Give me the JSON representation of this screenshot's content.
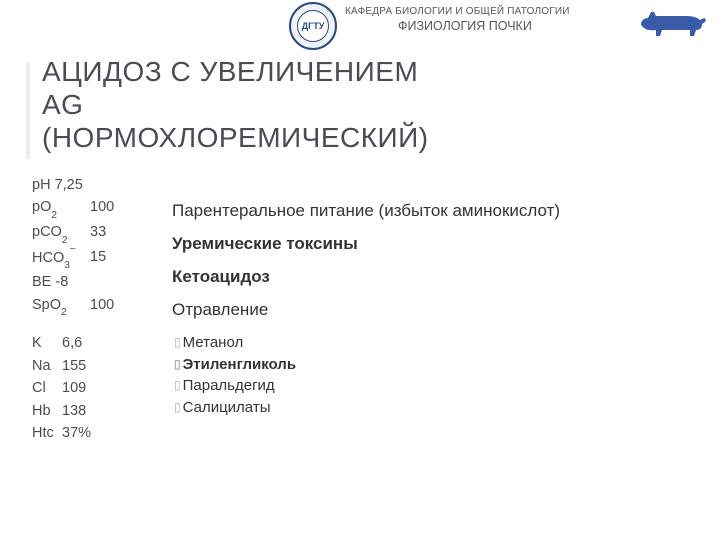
{
  "header": {
    "dept": "КАФЕДРА БИОЛОГИИ И ОБЩЕЙ ПАТОЛОГИИ",
    "course": "ФИЗИОЛОГИЯ ПОЧКИ",
    "seal_text": "ДГТУ"
  },
  "title_line1": "АЦИДОЗ С УВЕЛИЧЕНИЕМ",
  "title_line2": "AG",
  "title_line3": "(НОРМОХЛОРЕМИЧЕСКИЙ)",
  "params_top": [
    {
      "label_html": "pH",
      "value": "7,25",
      "inline": true
    },
    {
      "label_html": "pO<sub>2</sub>",
      "value": "100"
    },
    {
      "label_html": "pCO<sub>2</sub>",
      "value": "33"
    },
    {
      "label_html": "HCO<sub>3</sub><sup>−</sup>",
      "value": "15"
    },
    {
      "label_html": "BE",
      "value": "-8",
      "inline": true
    },
    {
      "label_html": "SpO<sub>2</sub>",
      "value": "100"
    }
  ],
  "params_bottom": [
    {
      "label_html": "K",
      "value": "6,6"
    },
    {
      "label_html": "Na",
      "value": "155"
    },
    {
      "label_html": "Cl",
      "value": "109"
    },
    {
      "label_html": "Hb",
      "value": "138"
    },
    {
      "label_html": "Htc",
      "value": "37%"
    }
  ],
  "causes": [
    {
      "text": "Парентеральное питание (избыток аминокислот)",
      "bold": false
    },
    {
      "text": "Уремические токсины",
      "bold": true
    },
    {
      "text": "Кетоацидоз",
      "bold": true
    },
    {
      "text": "Отравление",
      "bold": false
    }
  ],
  "sub_bullets": [
    {
      "text": "Метанол",
      "bold": false
    },
    {
      "text": "Этиленгликоль",
      "bold": true
    },
    {
      "text": "Паральдегид",
      "bold": false
    },
    {
      "text": "Салицилаты",
      "bold": false
    }
  ],
  "colors": {
    "text": "#474c55",
    "body_text": "#333333",
    "accent_bar": "#e8eef5",
    "seal": "#2b4a80",
    "dog": "#3a5ca8",
    "background": "#ffffff"
  }
}
